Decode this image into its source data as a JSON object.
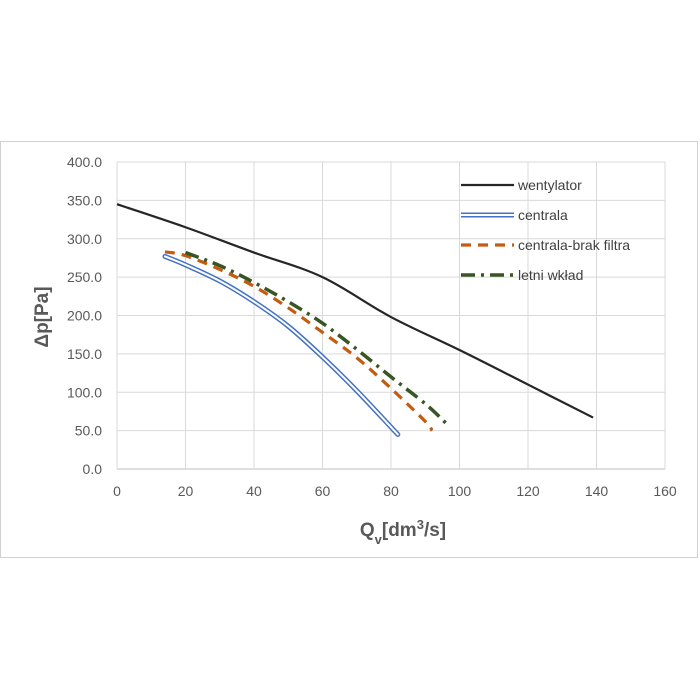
{
  "chart_data": {
    "type": "line",
    "xlabel": "Q",
    "xlabel_sub": "v",
    "xlabel_units": "[dm",
    "xlabel_sup": "3",
    "xlabel_tail": "/s]",
    "ylabel": "Δp[Pa]",
    "xlim": [
      0,
      160
    ],
    "ylim": [
      0,
      400
    ],
    "x_ticks": [
      "0",
      "20",
      "40",
      "60",
      "80",
      "100",
      "120",
      "140",
      "160"
    ],
    "y_ticks": [
      "0.0",
      "50.0",
      "100.0",
      "150.0",
      "200.0",
      "250.0",
      "300.0",
      "350.0",
      "400.0"
    ],
    "grid": true,
    "legend_position": "top-right",
    "series": [
      {
        "name": "wentylator",
        "color": "#262626",
        "style": "solid",
        "points": [
          [
            0,
            345
          ],
          [
            20,
            315
          ],
          [
            40,
            282
          ],
          [
            60,
            250
          ],
          [
            80,
            198
          ],
          [
            100,
            155
          ],
          [
            120,
            110
          ],
          [
            139,
            67
          ]
        ]
      },
      {
        "name": "centrala",
        "color": "#4472c4",
        "style": "double",
        "points": [
          [
            14,
            277
          ],
          [
            20,
            266
          ],
          [
            30,
            245
          ],
          [
            40,
            218
          ],
          [
            50,
            186
          ],
          [
            60,
            146
          ],
          [
            70,
            102
          ],
          [
            82,
            45
          ]
        ]
      },
      {
        "name": "centrala-brak filtra",
        "color": "#c55a11",
        "style": "dashed",
        "points": [
          [
            14,
            283
          ],
          [
            20,
            278
          ],
          [
            30,
            260
          ],
          [
            40,
            238
          ],
          [
            50,
            210
          ],
          [
            60,
            178
          ],
          [
            70,
            145
          ],
          [
            80,
            105
          ],
          [
            90,
            62
          ],
          [
            92,
            50
          ]
        ]
      },
      {
        "name": "letni wkład",
        "color": "#375623",
        "style": "dashdot",
        "points": [
          [
            20,
            282
          ],
          [
            30,
            265
          ],
          [
            40,
            243
          ],
          [
            50,
            218
          ],
          [
            60,
            190
          ],
          [
            70,
            156
          ],
          [
            80,
            120
          ],
          [
            90,
            85
          ],
          [
            96,
            60
          ]
        ]
      }
    ]
  }
}
